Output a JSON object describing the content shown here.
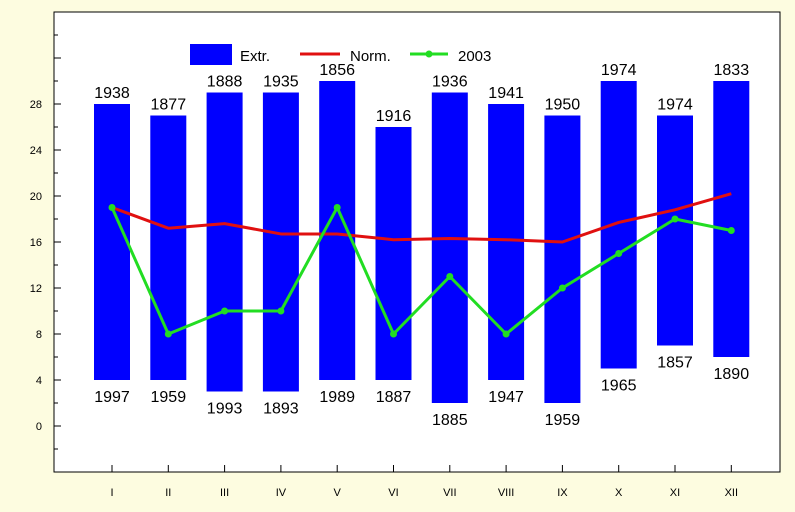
{
  "chart_data": {
    "type": "bar",
    "categories": [
      "I",
      "II",
      "III",
      "IV",
      "V",
      "VI",
      "VII",
      "VIII",
      "IX",
      "X",
      "XI",
      "XII"
    ],
    "y_ticks": [
      "0",
      "4",
      "8",
      "12",
      "16",
      "20",
      "24",
      "28"
    ],
    "ylim": [
      -4,
      36
    ],
    "grid": false,
    "legend_position": "top",
    "series": [
      {
        "name": "Extr.",
        "type": "range-bar",
        "color": "#0000ff",
        "high": [
          28,
          27,
          29,
          29,
          30,
          26,
          29,
          28,
          27,
          30,
          27,
          30
        ],
        "low": [
          4,
          4,
          3,
          3,
          4,
          4,
          2,
          4,
          2,
          5,
          7,
          6
        ],
        "high_year_labels": [
          "1938",
          "1877",
          "1888",
          "1935",
          "1856",
          "1916",
          "1936",
          "1941",
          "1950",
          "1974",
          "1974",
          "1833"
        ],
        "low_year_labels": [
          "1997",
          "1959",
          "1993",
          "1893",
          "1989",
          "1887",
          "1885",
          "1947",
          "1959",
          "1965",
          "1857",
          "1890"
        ]
      },
      {
        "name": "Norm.",
        "type": "line",
        "color": "#e01010",
        "values": [
          19,
          17.2,
          17.6,
          16.7,
          16.7,
          16.2,
          16.3,
          16.2,
          16.0,
          17.7,
          18.8,
          20.2
        ]
      },
      {
        "name": "2003",
        "type": "line",
        "color": "#22dd22",
        "marker": "circle",
        "values": [
          19,
          8,
          10,
          10,
          19,
          8,
          13,
          8,
          12,
          15,
          18,
          17
        ]
      }
    ]
  }
}
